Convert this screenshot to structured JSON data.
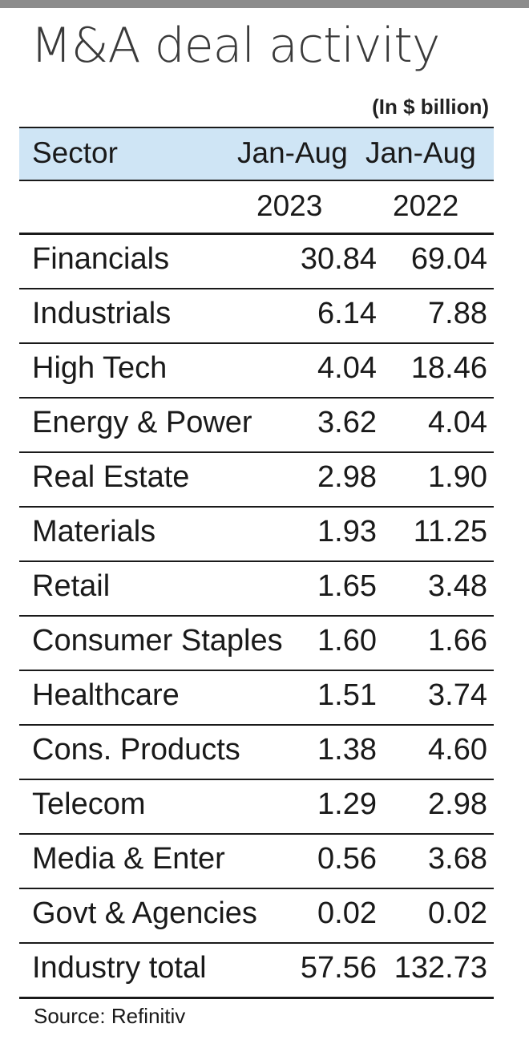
{
  "title": "M&A deal activity",
  "unit": "(In $ billion)",
  "header": {
    "sector": "Sector",
    "col1_top": "Jan-Aug",
    "col2_top": "Jan-Aug",
    "col1_year": "2023",
    "col2_year": "2022"
  },
  "source": "Source: Refinitiv",
  "chart_data": {
    "type": "table",
    "title": "M&A deal activity",
    "unit": "(In $ billion)",
    "columns": [
      "Sector",
      "Jan-Aug 2023",
      "Jan-Aug 2022"
    ],
    "rows": [
      {
        "sector": "Financials",
        "v2023": "30.84",
        "v2022": "69.04"
      },
      {
        "sector": "Industrials",
        "v2023": "6.14",
        "v2022": "7.88"
      },
      {
        "sector": "High Tech",
        "v2023": "4.04",
        "v2022": "18.46"
      },
      {
        "sector": "Energy & Power",
        "v2023": "3.62",
        "v2022": "4.04"
      },
      {
        "sector": "Real Estate",
        "v2023": "2.98",
        "v2022": "1.90"
      },
      {
        "sector": "Materials",
        "v2023": "1.93",
        "v2022": "11.25"
      },
      {
        "sector": "Retail",
        "v2023": "1.65",
        "v2022": "3.48"
      },
      {
        "sector": "Consumer Staples",
        "v2023": "1.60",
        "v2022": "1.66"
      },
      {
        "sector": "Healthcare",
        "v2023": "1.51",
        "v2022": "3.74"
      },
      {
        "sector": "Cons. Products",
        "v2023": "1.38",
        "v2022": "4.60"
      },
      {
        "sector": "Telecom",
        "v2023": "1.29",
        "v2022": "2.98"
      },
      {
        "sector": "Media & Enter",
        "v2023": "0.56",
        "v2022": "3.68"
      },
      {
        "sector": "Govt & Agencies",
        "v2023": "0.02",
        "v2022": "0.02"
      },
      {
        "sector": "Industry total",
        "v2023": "57.56",
        "v2022": "132.73"
      }
    ]
  }
}
